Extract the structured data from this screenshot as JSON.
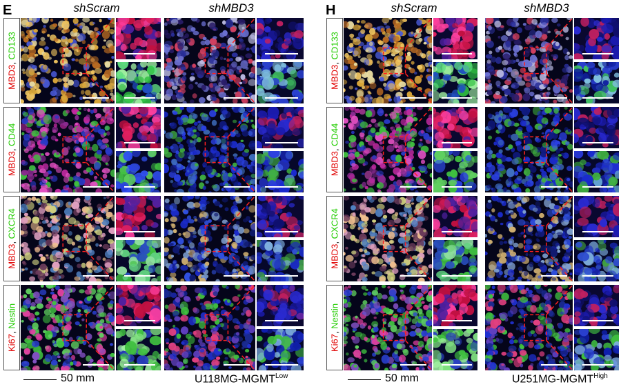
{
  "panels": [
    {
      "letter": "E",
      "group_left": "shScram",
      "group_right": "shMBD3",
      "rows": [
        {
          "m1": "MBD3",
          "sep": ", ",
          "m2": "CD133"
        },
        {
          "m1": "MBD3",
          "sep": ", ",
          "m2": "CD44"
        },
        {
          "m1": "MBD3",
          "sep": ", ",
          "m2": "CXCR4"
        },
        {
          "m1": "Ki67",
          "sep": ", ",
          "m2": "Nestin"
        }
      ],
      "scale_text": "50 mm",
      "cell_line": "U118MG-MGMT",
      "cell_line_sup": "Low"
    },
    {
      "letter": "H",
      "group_left": "shScram",
      "group_right": "shMBD3",
      "rows": [
        {
          "m1": "MBD3",
          "sep": ", ",
          "m2": "CD133"
        },
        {
          "m1": "MBD3",
          "sep": ", ",
          "m2": "CD44"
        },
        {
          "m1": "MBD3",
          "sep": ", ",
          "m2": "CXCR4"
        },
        {
          "m1": "Ki67",
          "sep": ", ",
          "m2": "Nestin"
        }
      ],
      "scale_text": "50 mm",
      "cell_line": "U251MG-MGMT",
      "cell_line_sup": "High"
    }
  ],
  "colors": {
    "marker_red": "#e00000",
    "marker_green": "#22cc00",
    "zoom_box": "#ff2020",
    "nuclei": "#1a2fd0"
  }
}
